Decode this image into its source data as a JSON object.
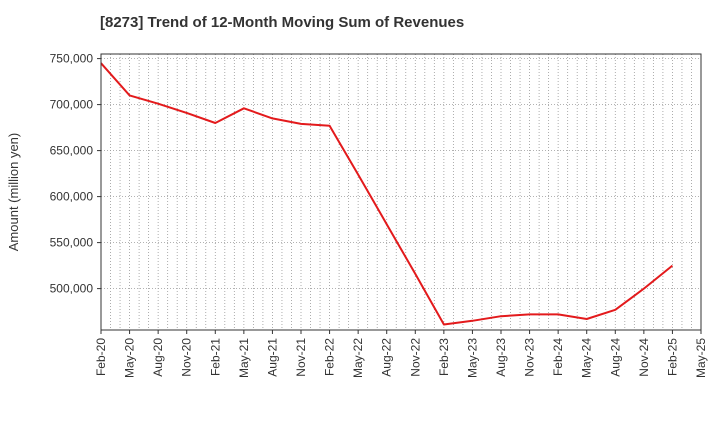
{
  "chart_data": {
    "type": "line",
    "title": "[8273]  Trend of 12-Month Moving Sum of Revenues",
    "xlabel": "",
    "ylabel": "Amount (million yen)",
    "ylim": [
      455000,
      755000
    ],
    "y_ticks": [
      500000,
      550000,
      600000,
      650000,
      700000,
      750000
    ],
    "y_tick_labels": [
      "500,000",
      "550,000",
      "600,000",
      "650,000",
      "700,000",
      "750,000"
    ],
    "x_tick_labels": [
      "Feb-20",
      "May-20",
      "Aug-20",
      "Nov-20",
      "Feb-21",
      "May-21",
      "Aug-21",
      "Nov-21",
      "Feb-22",
      "May-22",
      "Aug-22",
      "Nov-22",
      "Feb-23",
      "May-23",
      "Aug-23",
      "Nov-23",
      "Feb-24",
      "May-24",
      "Aug-24",
      "Nov-24",
      "Feb-25",
      "May-25"
    ],
    "grid": true,
    "series": [
      {
        "color": "#e31a1c",
        "x": [
          "Feb-20",
          "May-20",
          "Aug-20",
          "Nov-20",
          "Feb-21",
          "May-21",
          "Aug-21",
          "Nov-21",
          "Feb-22",
          "May-22",
          "Aug-22",
          "Nov-22",
          "Feb-23",
          "May-23",
          "Aug-23",
          "Nov-23",
          "Feb-24",
          "May-24",
          "Aug-24",
          "Nov-24",
          "Feb-25"
        ],
        "values": [
          745000,
          710000,
          701000,
          691000,
          680000,
          696000,
          685000,
          679000,
          677000,
          624000,
          570000,
          516000,
          461000,
          465000,
          470000,
          472000,
          472000,
          467000,
          477000,
          500000,
          525000
        ]
      }
    ]
  }
}
